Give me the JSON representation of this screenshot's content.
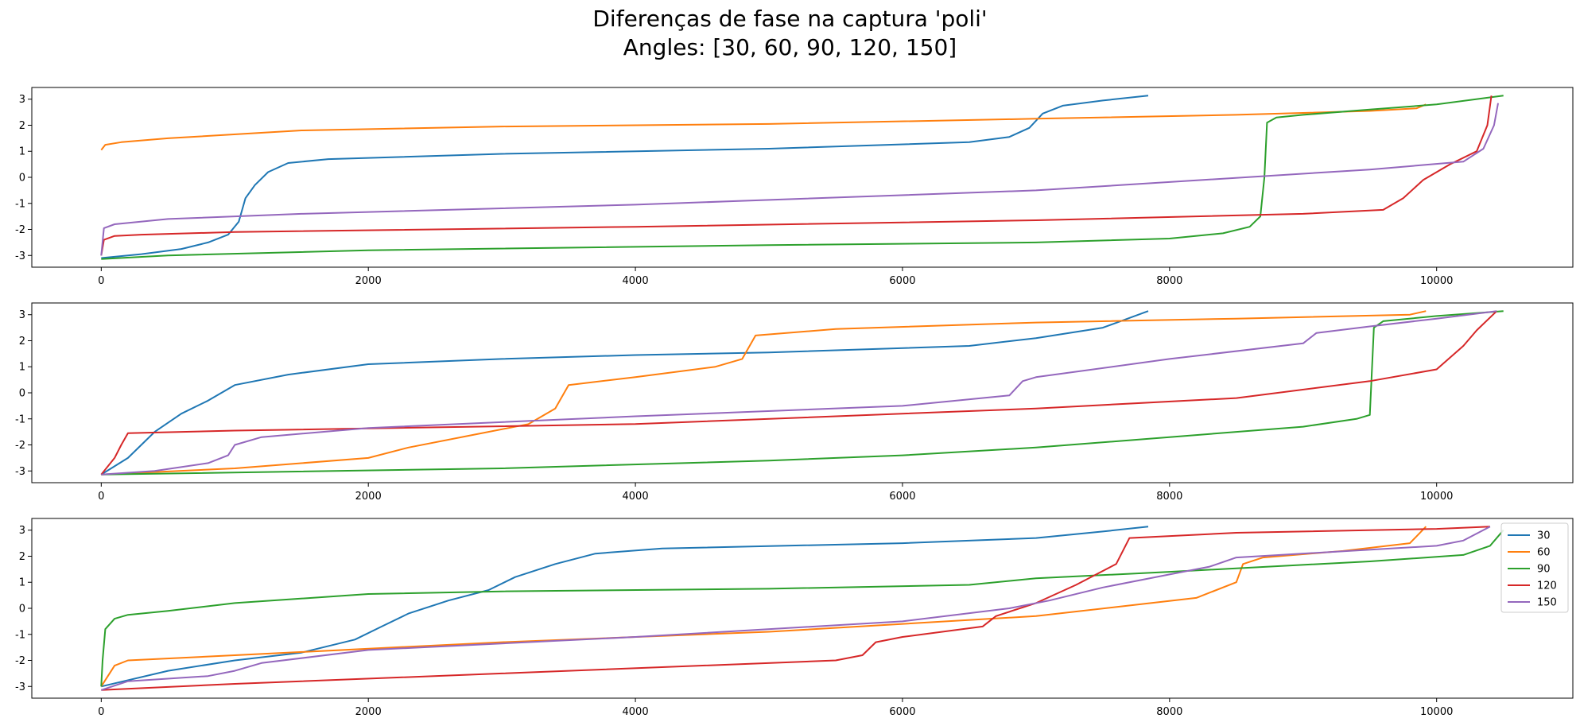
{
  "title_line1": "Diferenças de fase na captura 'poli'",
  "title_line2": "Angles: [30, 60, 90, 120, 150]",
  "colors": {
    "30": "#1f77b4",
    "60": "#ff7f0e",
    "90": "#2ca02c",
    "120": "#d62728",
    "150": "#9467bd"
  },
  "chart_data": [
    {
      "type": "line",
      "xlim": [
        -520,
        11020
      ],
      "ylim": [
        -3.45,
        3.45
      ],
      "xticks": [
        0,
        2000,
        4000,
        6000,
        8000,
        10000
      ],
      "yticks": [
        -3,
        -2,
        -1,
        0,
        1,
        2,
        3
      ],
      "grid": false,
      "series": [
        {
          "name": "30",
          "x": [
            0,
            300,
            600,
            800,
            950,
            1030,
            1080,
            1150,
            1250,
            1400,
            1700,
            3000,
            5000,
            6500,
            6800,
            6950,
            7050,
            7200,
            7500,
            7840
          ],
          "y": [
            -3.1,
            -2.95,
            -2.75,
            -2.5,
            -2.2,
            -1.7,
            -0.8,
            -0.3,
            0.2,
            0.55,
            0.7,
            0.9,
            1.1,
            1.35,
            1.55,
            1.9,
            2.45,
            2.75,
            2.95,
            3.14
          ]
        },
        {
          "name": "60",
          "x": [
            0,
            30,
            150,
            500,
            1500,
            3000,
            5000,
            7000,
            8500,
            9500,
            9850,
            9920
          ],
          "y": [
            1.05,
            1.25,
            1.35,
            1.5,
            1.8,
            1.95,
            2.05,
            2.25,
            2.4,
            2.55,
            2.65,
            2.8
          ]
        },
        {
          "name": "90",
          "x": [
            0,
            500,
            2000,
            5000,
            7000,
            8000,
            8400,
            8600,
            8680,
            8710,
            8730,
            8800,
            9000,
            9500,
            10000,
            10500
          ],
          "y": [
            -3.14,
            -3.0,
            -2.8,
            -2.6,
            -2.5,
            -2.35,
            -2.15,
            -1.9,
            -1.5,
            0.0,
            2.1,
            2.3,
            2.4,
            2.6,
            2.8,
            3.14
          ]
        },
        {
          "name": "120",
          "x": [
            0,
            20,
            100,
            300,
            1000,
            4000,
            7000,
            9000,
            9600,
            9750,
            9900,
            10100,
            10300,
            10380,
            10410
          ],
          "y": [
            -3.0,
            -2.4,
            -2.25,
            -2.2,
            -2.1,
            -1.9,
            -1.65,
            -1.4,
            -1.25,
            -0.8,
            -0.1,
            0.5,
            1.0,
            2.0,
            3.14
          ]
        },
        {
          "name": "150",
          "x": [
            0,
            20,
            100,
            500,
            1500,
            4000,
            7000,
            9500,
            10200,
            10350,
            10430,
            10460
          ],
          "y": [
            -3.0,
            -1.95,
            -1.8,
            -1.6,
            -1.4,
            -1.05,
            -0.5,
            0.3,
            0.6,
            1.1,
            2.0,
            2.85
          ]
        }
      ]
    },
    {
      "type": "line",
      "xlim": [
        -520,
        11020
      ],
      "ylim": [
        -3.45,
        3.45
      ],
      "xticks": [
        0,
        2000,
        4000,
        6000,
        8000,
        10000
      ],
      "yticks": [
        -3,
        -2,
        -1,
        0,
        1,
        2,
        3
      ],
      "grid": false,
      "series": [
        {
          "name": "30",
          "x": [
            0,
            200,
            400,
            600,
            800,
            1000,
            1400,
            2000,
            3000,
            4000,
            5000,
            6500,
            7000,
            7500,
            7840
          ],
          "y": [
            -3.14,
            -2.5,
            -1.5,
            -0.8,
            -0.3,
            0.3,
            0.7,
            1.1,
            1.3,
            1.45,
            1.55,
            1.8,
            2.1,
            2.5,
            3.14
          ]
        },
        {
          "name": "60",
          "x": [
            0,
            1000,
            2000,
            2300,
            2800,
            3200,
            3400,
            3500,
            4000,
            4600,
            4800,
            4900,
            5500,
            7000,
            8500,
            9800,
            9920
          ],
          "y": [
            -3.14,
            -2.9,
            -2.5,
            -2.1,
            -1.6,
            -1.2,
            -0.6,
            0.3,
            0.6,
            1.0,
            1.3,
            2.2,
            2.45,
            2.7,
            2.85,
            3.0,
            3.14
          ]
        },
        {
          "name": "90",
          "x": [
            0,
            3000,
            5000,
            6000,
            7000,
            8000,
            9000,
            9400,
            9500,
            9530,
            9600,
            10000,
            10500
          ],
          "y": [
            -3.14,
            -2.9,
            -2.6,
            -2.4,
            -2.1,
            -1.7,
            -1.3,
            -1.0,
            -0.85,
            2.5,
            2.75,
            2.95,
            3.14
          ]
        },
        {
          "name": "120",
          "x": [
            0,
            100,
            150,
            200,
            1000,
            4000,
            7000,
            8500,
            9500,
            10000,
            10200,
            10300,
            10450
          ],
          "y": [
            -3.14,
            -2.5,
            -2.0,
            -1.55,
            -1.45,
            -1.2,
            -0.6,
            -0.2,
            0.45,
            0.9,
            1.8,
            2.4,
            3.14
          ]
        },
        {
          "name": "150",
          "x": [
            0,
            400,
            800,
            950,
            1000,
            1200,
            2000,
            4000,
            6000,
            6800,
            6900,
            7000,
            8000,
            9000,
            9100,
            9500,
            10000,
            10450
          ],
          "y": [
            -3.14,
            -3.0,
            -2.7,
            -2.4,
            -2.0,
            -1.7,
            -1.35,
            -0.9,
            -0.5,
            -0.1,
            0.45,
            0.6,
            1.3,
            1.9,
            2.3,
            2.55,
            2.85,
            3.14
          ]
        }
      ]
    },
    {
      "type": "line",
      "xlim": [
        -520,
        11020
      ],
      "ylim": [
        -3.45,
        3.45
      ],
      "xticks": [
        0,
        2000,
        4000,
        6000,
        8000,
        10000
      ],
      "yticks": [
        -3,
        -2,
        -1,
        0,
        1,
        2,
        3
      ],
      "grid": false,
      "legend": {
        "position": "top-right",
        "entries": [
          "30",
          "60",
          "90",
          "120",
          "150"
        ]
      },
      "series": [
        {
          "name": "30",
          "x": [
            0,
            500,
            1000,
            1500,
            1900,
            2100,
            2300,
            2600,
            2900,
            3100,
            3400,
            3700,
            4200,
            6000,
            7000,
            7500,
            7840
          ],
          "y": [
            -3.0,
            -2.4,
            -2.0,
            -1.7,
            -1.2,
            -0.7,
            -0.2,
            0.3,
            0.7,
            1.2,
            1.7,
            2.1,
            2.3,
            2.5,
            2.7,
            2.95,
            3.14
          ]
        },
        {
          "name": "60",
          "x": [
            0,
            100,
            200,
            1000,
            3000,
            5000,
            7000,
            8200,
            8500,
            8550,
            8700,
            9300,
            9800,
            9920
          ],
          "y": [
            -3.0,
            -2.2,
            -2.0,
            -1.8,
            -1.3,
            -0.9,
            -0.3,
            0.4,
            1.0,
            1.7,
            1.95,
            2.2,
            2.5,
            3.14
          ]
        },
        {
          "name": "90",
          "x": [
            0,
            10,
            30,
            100,
            200,
            500,
            1000,
            2000,
            3000,
            5000,
            6500,
            7000,
            8000,
            9500,
            10200,
            10400,
            10500
          ],
          "y": [
            -3.0,
            -2.0,
            -0.8,
            -0.4,
            -0.25,
            -0.1,
            0.2,
            0.55,
            0.65,
            0.75,
            0.9,
            1.15,
            1.4,
            1.8,
            2.05,
            2.4,
            3.0
          ]
        },
        {
          "name": "120",
          "x": [
            0,
            1000,
            3000,
            5500,
            5700,
            5800,
            6000,
            6600,
            6700,
            7000,
            7300,
            7600,
            7700,
            8500,
            10000,
            10400
          ],
          "y": [
            -3.14,
            -2.9,
            -2.5,
            -2.0,
            -1.8,
            -1.3,
            -1.1,
            -0.7,
            -0.3,
            0.2,
            0.9,
            1.7,
            2.7,
            2.9,
            3.05,
            3.14
          ]
        },
        {
          "name": "150",
          "x": [
            0,
            200,
            800,
            1000,
            1200,
            2000,
            4000,
            6000,
            6800,
            7100,
            7500,
            8000,
            8300,
            8500,
            10000,
            10200,
            10400
          ],
          "y": [
            -3.14,
            -2.8,
            -2.6,
            -2.4,
            -2.1,
            -1.6,
            -1.1,
            -0.5,
            0.0,
            0.3,
            0.8,
            1.3,
            1.6,
            1.95,
            2.4,
            2.6,
            3.14
          ]
        }
      ]
    }
  ]
}
